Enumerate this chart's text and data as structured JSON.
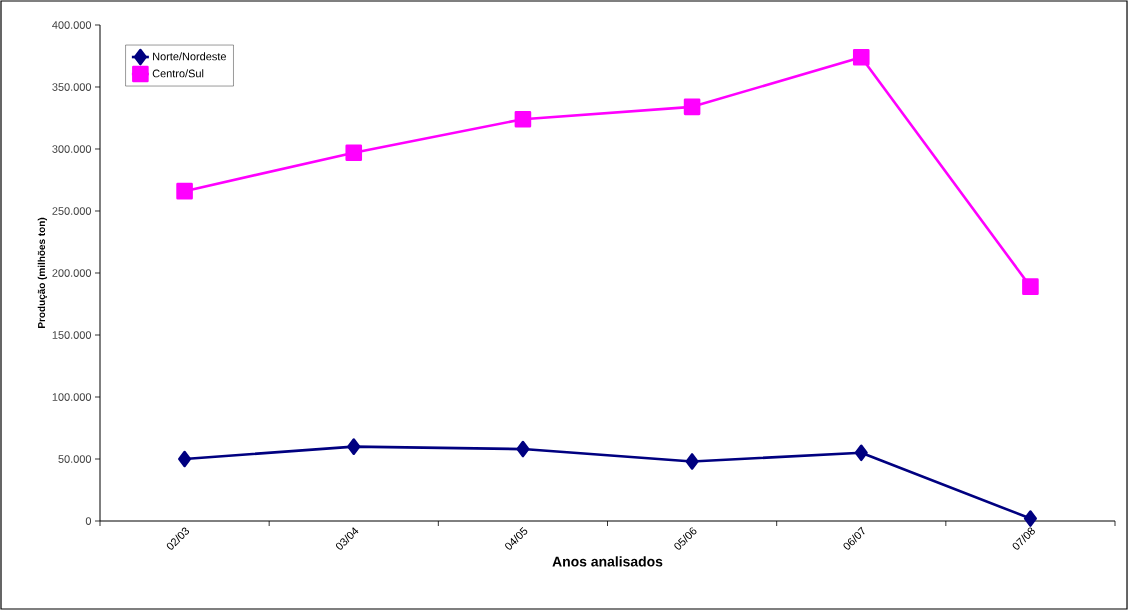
{
  "chart_data": {
    "type": "line",
    "xlabel": "Anos analisados",
    "ylabel": "Produção (milhões ton)",
    "categories": [
      "02/03",
      "03/04",
      "04/05",
      "05/06",
      "06/07",
      "07/08"
    ],
    "series": [
      {
        "name": "Norte/Nordeste",
        "color": "#000080",
        "marker": "diamond",
        "values": [
          50000,
          60000,
          58000,
          48000,
          55000,
          2000
        ]
      },
      {
        "name": "Centro/Sul",
        "color": "#ff00ff",
        "marker": "square",
        "values": [
          266000,
          297000,
          324000,
          334000,
          374000,
          189000
        ]
      }
    ],
    "ylim": [
      0,
      400000
    ],
    "yticks": [
      {
        "value": 0,
        "label": "0"
      },
      {
        "value": 50000,
        "label": "50.000"
      },
      {
        "value": 100000,
        "label": "100.000"
      },
      {
        "value": 150000,
        "label": "150.000"
      },
      {
        "value": 200000,
        "label": "200.000"
      },
      {
        "value": 250000,
        "label": "250.000"
      },
      {
        "value": 300000,
        "label": "300.000"
      },
      {
        "value": 350000,
        "label": "350.000"
      },
      {
        "value": 400000,
        "label": "400.000"
      }
    ],
    "legend": "top left",
    "grid": false,
    "line_style": "solid"
  }
}
